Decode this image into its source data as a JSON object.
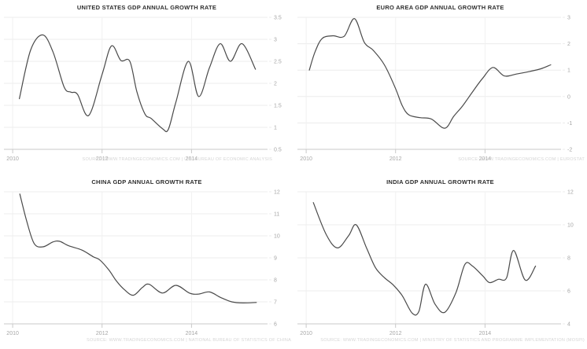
{
  "page": {
    "background": "#ffffff"
  },
  "colors": {
    "line": "#4a4a4a",
    "grid": "#ececec",
    "vgrid": "#f1f1f1",
    "axis": "#c9c9c9",
    "tick_label": "#a6a6a6",
    "title": "#2e2e2e",
    "source": "#d5d5d5"
  },
  "chart_data": [
    {
      "type": "line",
      "title": "UNITED STATES GDP ANNUAL GROWTH RATE",
      "source": "SOURCE: WWW.TRADINGECONOMICS.COM | U.S. BUREAU OF ECONOMIC ANALYSIS",
      "legend": "none",
      "grid": true,
      "x_ticks": [
        2010,
        2012,
        2014
      ],
      "x_range": [
        2009.84,
        2015.7
      ],
      "y_range": [
        0.5,
        3.5
      ],
      "y_step": 0.5,
      "points": [
        [
          2010.15,
          1.65
        ],
        [
          2010.4,
          2.75
        ],
        [
          2010.67,
          3.1
        ],
        [
          2010.9,
          2.72
        ],
        [
          2011.15,
          1.92
        ],
        [
          2011.3,
          1.8
        ],
        [
          2011.45,
          1.75
        ],
        [
          2011.7,
          1.27
        ],
        [
          2012.0,
          2.2
        ],
        [
          2012.21,
          2.85
        ],
        [
          2012.42,
          2.52
        ],
        [
          2012.62,
          2.5
        ],
        [
          2012.78,
          1.8
        ],
        [
          2012.96,
          1.3
        ],
        [
          2013.1,
          1.2
        ],
        [
          2013.35,
          0.97
        ],
        [
          2013.48,
          0.95
        ],
        [
          2013.65,
          1.57
        ],
        [
          2013.93,
          2.5
        ],
        [
          2014.16,
          1.7
        ],
        [
          2014.4,
          2.35
        ],
        [
          2014.64,
          2.9
        ],
        [
          2014.87,
          2.5
        ],
        [
          2015.13,
          2.9
        ],
        [
          2015.43,
          2.32
        ]
      ]
    },
    {
      "type": "line",
      "title": "EURO AREA GDP ANNUAL GROWTH RATE",
      "source": "SOURCE: WWW.TRADINGECONOMICS.COM | EUROSTAT",
      "legend": "none",
      "grid": true,
      "x_ticks": [
        2010,
        2012,
        2014
      ],
      "x_range": [
        2009.84,
        2015.7
      ],
      "y_range": [
        -2,
        3
      ],
      "y_step": 1,
      "points": [
        [
          2010.07,
          1.0
        ],
        [
          2010.2,
          1.7
        ],
        [
          2010.36,
          2.2
        ],
        [
          2010.6,
          2.3
        ],
        [
          2010.85,
          2.28
        ],
        [
          2011.08,
          2.95
        ],
        [
          2011.3,
          2.05
        ],
        [
          2011.5,
          1.75
        ],
        [
          2011.75,
          1.2
        ],
        [
          2012.0,
          0.3
        ],
        [
          2012.15,
          -0.35
        ],
        [
          2012.3,
          -0.7
        ],
        [
          2012.55,
          -0.8
        ],
        [
          2012.8,
          -0.85
        ],
        [
          2013.1,
          -1.2
        ],
        [
          2013.3,
          -0.75
        ],
        [
          2013.5,
          -0.35
        ],
        [
          2013.73,
          0.2
        ],
        [
          2013.95,
          0.7
        ],
        [
          2014.18,
          1.1
        ],
        [
          2014.43,
          0.78
        ],
        [
          2014.7,
          0.85
        ],
        [
          2015.0,
          0.95
        ],
        [
          2015.25,
          1.05
        ],
        [
          2015.47,
          1.2
        ]
      ]
    },
    {
      "type": "line",
      "title": "CHINA GDP ANNUAL GROWTH RATE",
      "source": "SOURCE: WWW.TRADINGECONOMICS.COM | NATIONAL BUREAU OF STATISTICS OF CHINA",
      "legend": "none",
      "grid": true,
      "x_ticks": [
        2010,
        2012,
        2014
      ],
      "x_range": [
        2009.84,
        2015.7
      ],
      "y_range": [
        6,
        12
      ],
      "y_step": 1,
      "points": [
        [
          2010.16,
          11.9
        ],
        [
          2010.31,
          10.7
        ],
        [
          2010.48,
          9.65
        ],
        [
          2010.68,
          9.5
        ],
        [
          2010.9,
          9.72
        ],
        [
          2011.05,
          9.75
        ],
        [
          2011.25,
          9.55
        ],
        [
          2011.55,
          9.35
        ],
        [
          2011.8,
          9.05
        ],
        [
          2011.95,
          8.9
        ],
        [
          2012.15,
          8.45
        ],
        [
          2012.32,
          7.95
        ],
        [
          2012.5,
          7.55
        ],
        [
          2012.7,
          7.3
        ],
        [
          2012.9,
          7.65
        ],
        [
          2013.05,
          7.8
        ],
        [
          2013.35,
          7.4
        ],
        [
          2013.65,
          7.75
        ],
        [
          2013.95,
          7.4
        ],
        [
          2014.15,
          7.35
        ],
        [
          2014.4,
          7.45
        ],
        [
          2014.65,
          7.2
        ],
        [
          2014.9,
          7.0
        ],
        [
          2015.15,
          6.95
        ],
        [
          2015.45,
          6.97
        ]
      ]
    },
    {
      "type": "line",
      "title": "INDIA GDP ANNUAL GROWTH RATE",
      "source": "SOURCE: WWW.TRADINGECONOMICS.COM | MINISTRY OF STATISTICS AND PROGRAMME IMPLEMENTATION (MOSPI)",
      "legend": "none",
      "grid": true,
      "x_ticks": [
        2010,
        2012,
        2014
      ],
      "x_range": [
        2009.84,
        2015.7
      ],
      "y_range": [
        4,
        12
      ],
      "y_step": 2,
      "points": [
        [
          2010.16,
          11.35
        ],
        [
          2010.45,
          9.4
        ],
        [
          2010.7,
          8.6
        ],
        [
          2010.95,
          9.35
        ],
        [
          2011.12,
          10.0
        ],
        [
          2011.35,
          8.6
        ],
        [
          2011.55,
          7.4
        ],
        [
          2011.75,
          6.8
        ],
        [
          2011.95,
          6.35
        ],
        [
          2012.15,
          5.7
        ],
        [
          2012.37,
          4.65
        ],
        [
          2012.52,
          4.75
        ],
        [
          2012.67,
          6.4
        ],
        [
          2012.88,
          5.2
        ],
        [
          2013.1,
          4.7
        ],
        [
          2013.35,
          5.9
        ],
        [
          2013.55,
          7.6
        ],
        [
          2013.72,
          7.5
        ],
        [
          2013.95,
          6.9
        ],
        [
          2014.1,
          6.5
        ],
        [
          2014.3,
          6.7
        ],
        [
          2014.48,
          6.78
        ],
        [
          2014.64,
          8.45
        ],
        [
          2014.9,
          6.65
        ],
        [
          2015.13,
          7.5
        ]
      ]
    }
  ]
}
